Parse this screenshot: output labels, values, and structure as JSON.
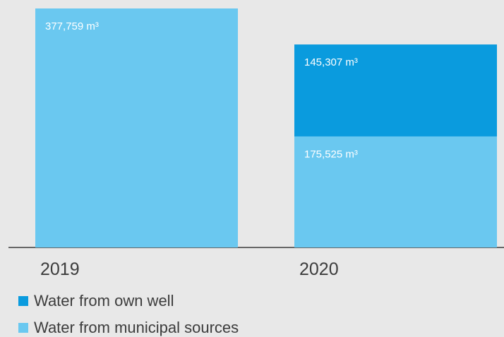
{
  "chart_data": {
    "type": "bar",
    "stacked": true,
    "categories": [
      "2019",
      "2020"
    ],
    "unit": "m³",
    "series": [
      {
        "name": "Water from municipal sources",
        "values": [
          377759,
          175525
        ],
        "labels": [
          "377,759 m³",
          "175,525 m³"
        ],
        "color": "#6ac8f0"
      },
      {
        "name": "Water from own well",
        "values": [
          null,
          145307
        ],
        "labels": [
          "",
          "145,307 m³"
        ],
        "color": "#0a9bde"
      }
    ],
    "legend": [
      {
        "label": "Water from own well",
        "color": "#0a9bde"
      },
      {
        "label": "Water from municipal sources",
        "color": "#6ac8f0"
      }
    ],
    "ylim": [
      0,
      377759
    ],
    "grid": false,
    "legend_position": "bottom-left",
    "title": "",
    "xlabel": "",
    "ylabel": ""
  },
  "colors": {
    "background": "#e8e8e8",
    "axis": "#3c3c3c",
    "label_text": "#ffffff"
  }
}
